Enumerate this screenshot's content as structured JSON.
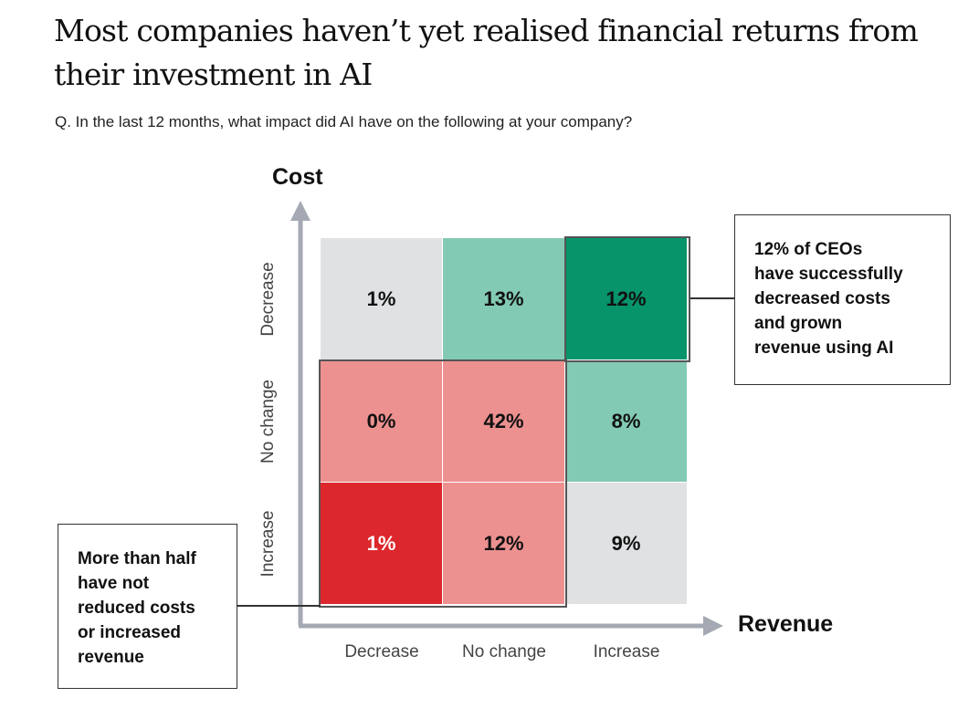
{
  "title": "Most companies haven’t yet realised financial returns from their investment in AI",
  "subtitle": "Q. In the last 12 months, what impact did AI have on the following at your company?",
  "chart_data": {
    "type": "heatmap",
    "xlabel": "Revenue",
    "ylabel": "Cost",
    "x_categories": [
      "Decrease",
      "No change",
      "Increase"
    ],
    "y_categories": [
      "Decrease",
      "No change",
      "Increase"
    ],
    "rows": [
      {
        "cost": "Decrease",
        "values": [
          "1%",
          "13%",
          "12%"
        ],
        "colors": [
          "#dfe1e3",
          "#83cab4",
          "#07946a"
        ]
      },
      {
        "cost": "No change",
        "values": [
          "0%",
          "42%",
          "8%"
        ],
        "colors": [
          "#ec9190",
          "#ec9190",
          "#83cab4"
        ]
      },
      {
        "cost": "Increase",
        "values": [
          "1%",
          "12%",
          "9%"
        ],
        "colors": [
          "#dc282d",
          "#ec9190",
          "#dfe1e3"
        ]
      }
    ],
    "annotations": [
      "12% of CEOs have successfully decreased costs and grown revenue using AI",
      "More than half have not reduced costs or increased revenue"
    ]
  },
  "callouts": {
    "right": [
      "12% of CEOs",
      "have successfully",
      "decreased costs",
      "and grown",
      "revenue using AI"
    ],
    "left": [
      "More than half",
      "have not",
      "reduced costs",
      "or increased",
      "revenue"
    ]
  }
}
